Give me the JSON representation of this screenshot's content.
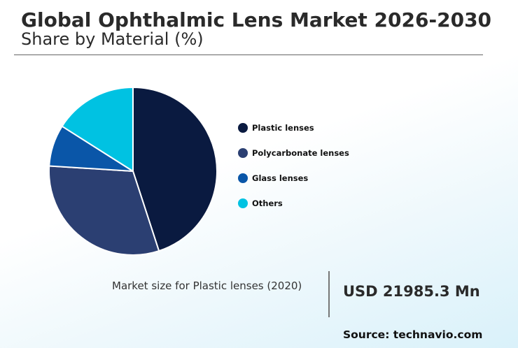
{
  "header": {
    "title": "Global Ophthalmic Lens Market 2026-2030",
    "subtitle": "Share by Material (%)"
  },
  "chart_data": {
    "type": "pie",
    "title": "Global Ophthalmic Lens Market 2026-2030",
    "subtitle": "Share by Material (%)",
    "labels": [
      "Plastic lenses",
      "Polycarbonate lenses",
      "Glass lenses",
      "Others"
    ],
    "values": [
      45,
      31,
      8,
      16
    ],
    "colors": [
      "#0a1a40",
      "#2b3f72",
      "#0a56a8",
      "#00c2e2"
    ],
    "start_angle_deg": 0,
    "direction": "clockwise",
    "legend": "right"
  },
  "legend": {
    "items": [
      {
        "label": "Plastic lenses",
        "color": "#0a1a40"
      },
      {
        "label": "Polycarbonate lenses",
        "color": "#2b3f72"
      },
      {
        "label": "Glass lenses",
        "color": "#0a56a8"
      },
      {
        "label": "Others",
        "color": "#00c2e2"
      }
    ]
  },
  "market_size": {
    "label": "Market size for Plastic lenses (2020)",
    "value": "USD 21985.3 Mn"
  },
  "source": "Source: technavio.com"
}
